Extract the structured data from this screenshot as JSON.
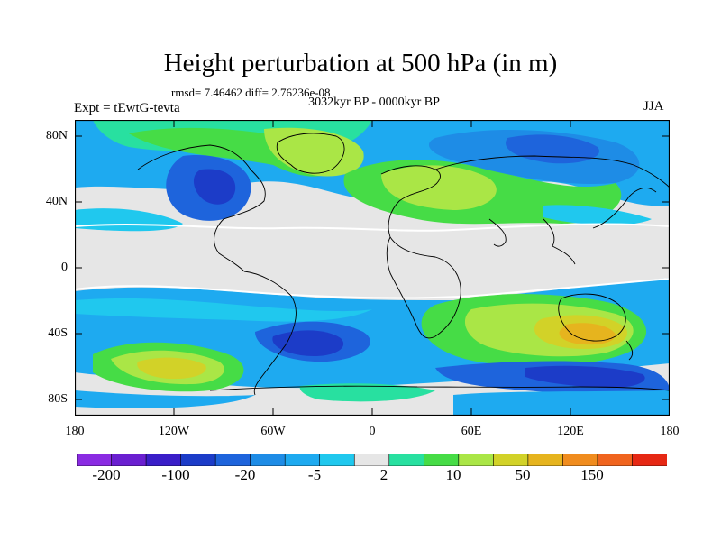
{
  "title": "Height perturbation at 500 hPa (in m)",
  "stats_line": "rmsd= 7.46462 diff= 2.76236e-08",
  "subtitle": "3032kyr BP - 0000kyr BP",
  "left_label": "Expt = tEwtG-tevta",
  "right_label": "JJA",
  "lat_ticks": [
    "80N",
    "40N",
    "0",
    "40S",
    "80S"
  ],
  "lon_ticks": [
    "180",
    "120W",
    "60W",
    "0",
    "60E",
    "120E",
    "180"
  ],
  "colorbar": {
    "labels": [
      "-200",
      "-100",
      "-20",
      "-5",
      "2",
      "10",
      "50",
      "150"
    ],
    "colors": [
      "#8a2be2",
      "#6a1fd0",
      "#3a1ec8",
      "#1c3cc8",
      "#1e64dc",
      "#1e8ce6",
      "#1eaaf0",
      "#20c8ee",
      "#e6e6e6",
      "#28e0a0",
      "#46dc46",
      "#aae646",
      "#d2d228",
      "#e6b41e",
      "#f08c1e",
      "#f0641e",
      "#e62814"
    ]
  },
  "chart_data": {
    "type": "heatmap",
    "title": "Height perturbation at 500 hPa (in m)",
    "xlabel": "",
    "ylabel": "",
    "xlim": [
      -180,
      180
    ],
    "ylim": [
      -90,
      90
    ],
    "colorbar_levels": [
      "-200",
      "-100",
      "-20",
      "-5",
      "2",
      "10",
      "50",
      "150"
    ]
  }
}
